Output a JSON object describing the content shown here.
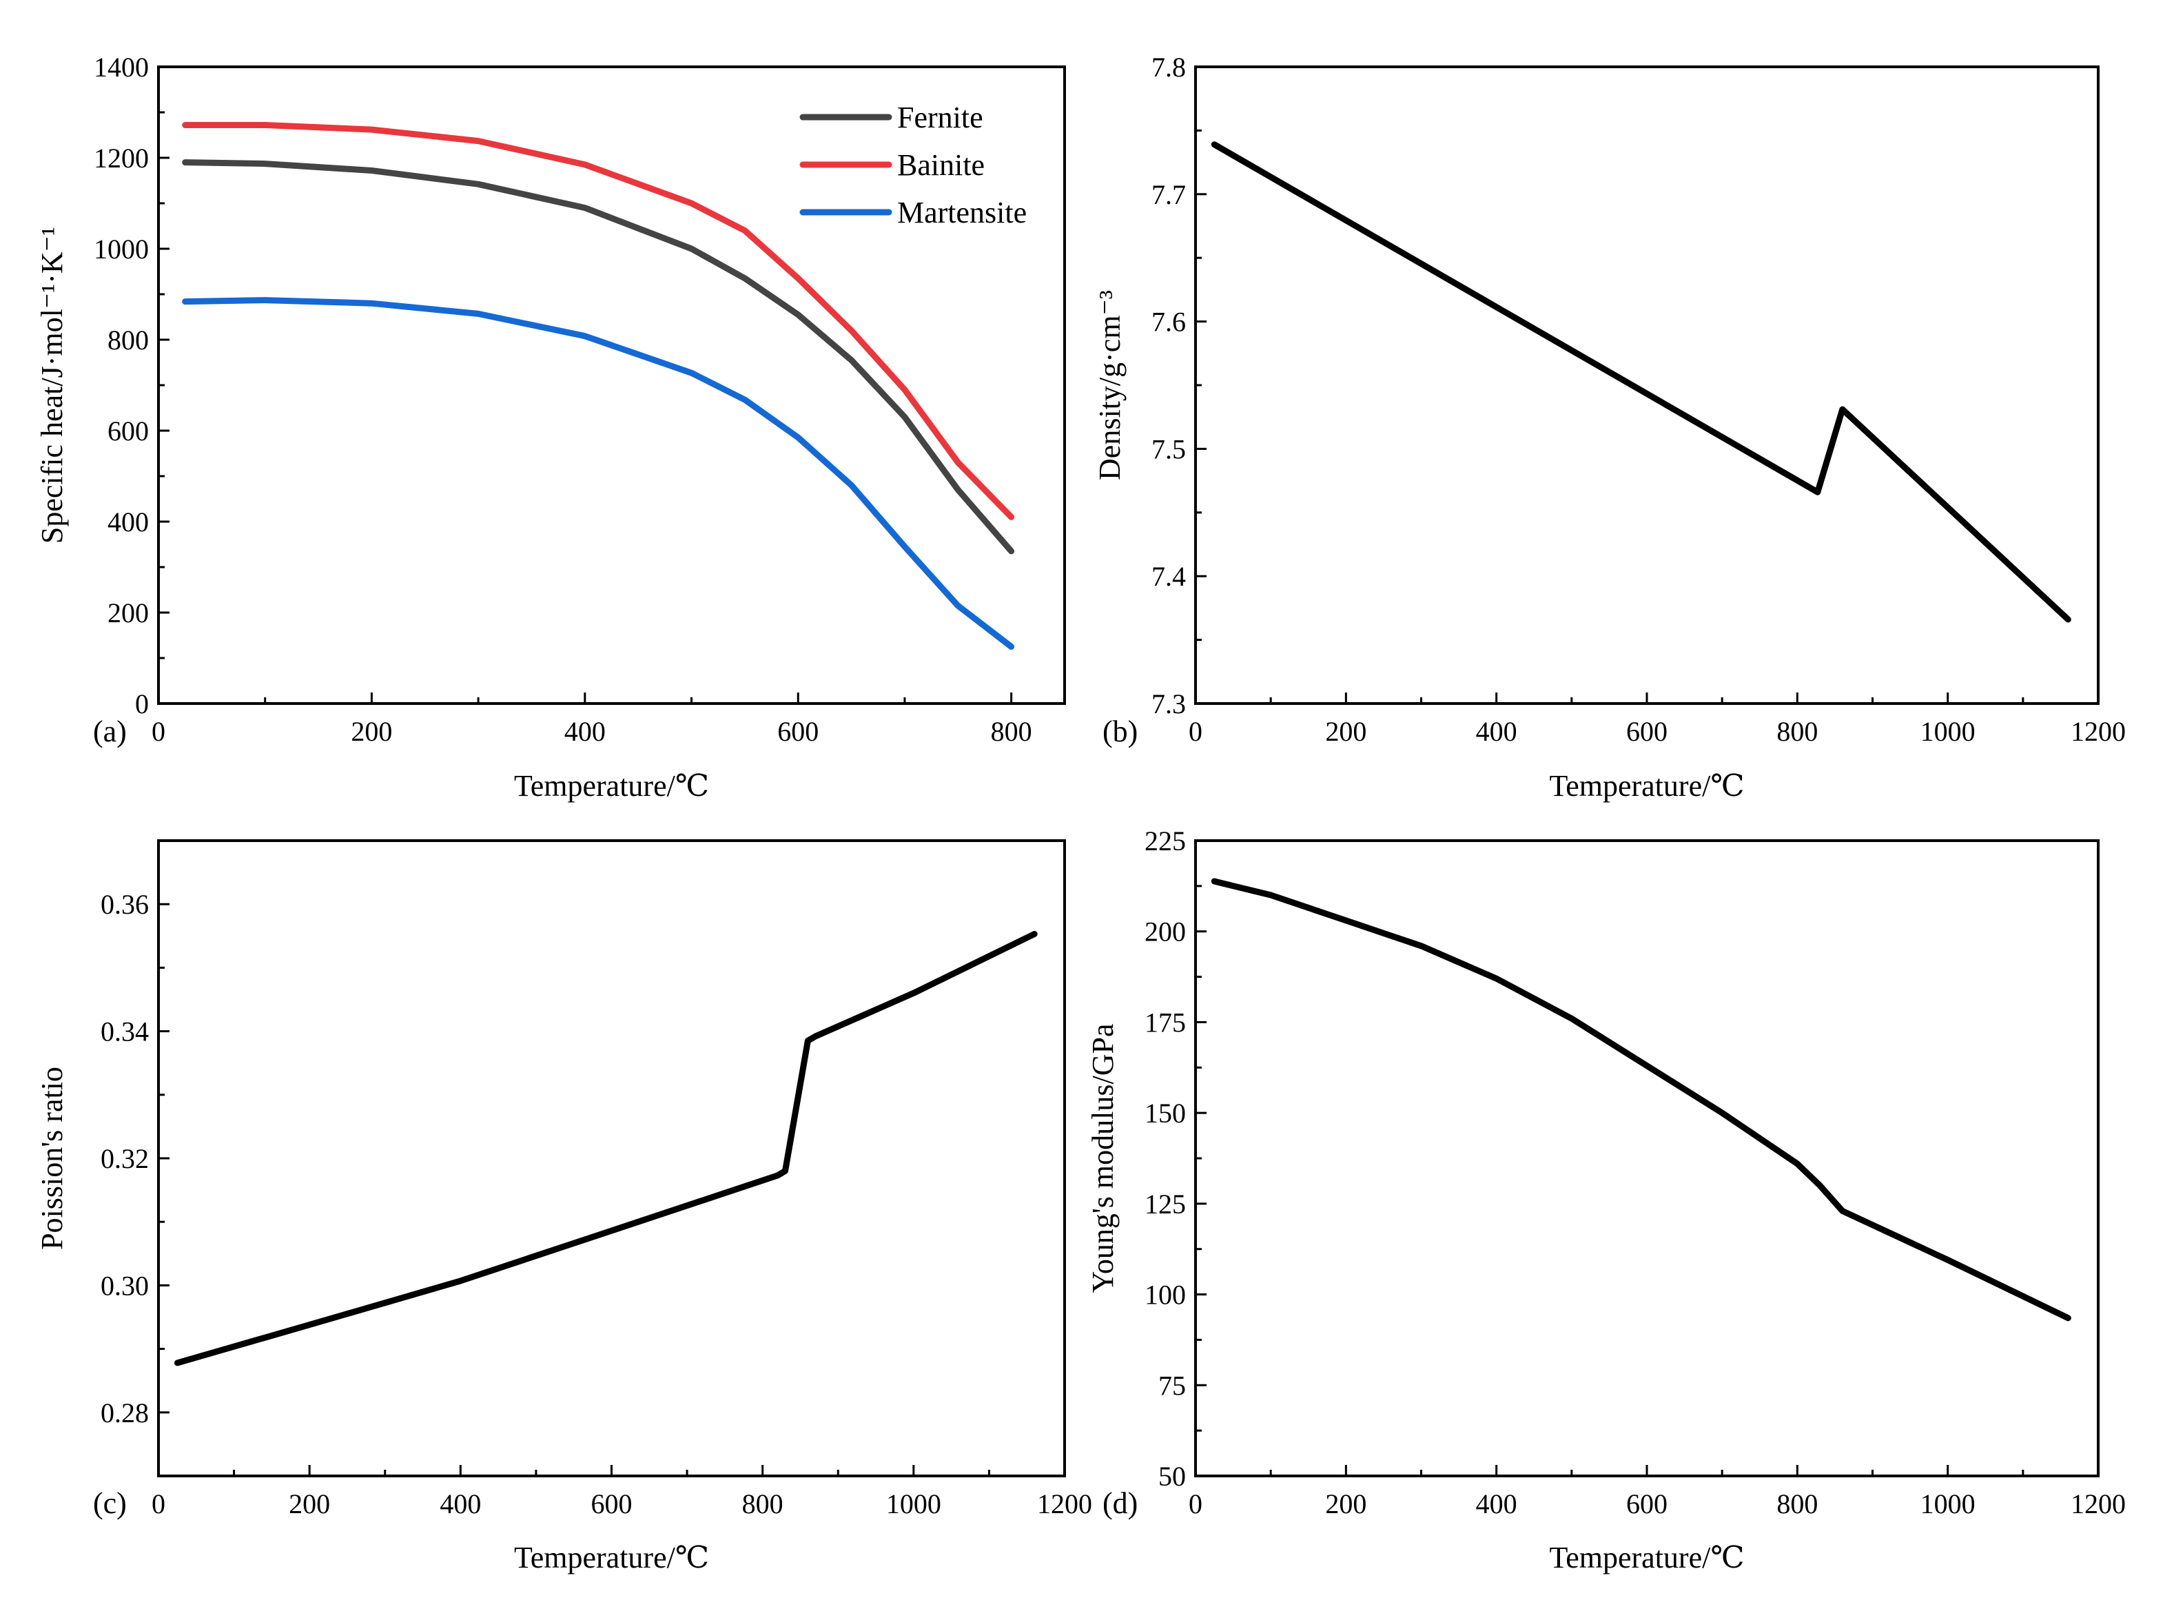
{
  "chart_data": [
    {
      "id": "a",
      "type": "line",
      "panel_label": "(a)",
      "xlabel": "Temperature/℃",
      "ylabel": "Specific heat/J·mol⁻¹·K⁻¹",
      "xlim": [
        0,
        850
      ],
      "ylim": [
        0,
        1400
      ],
      "xticks": [
        0,
        200,
        400,
        600,
        800
      ],
      "yticks": [
        0,
        200,
        400,
        600,
        800,
        1000,
        1200,
        1400
      ],
      "legend": "top-right",
      "series": [
        {
          "name": "Fernite",
          "color": "#444444",
          "x": [
            25,
            100,
            200,
            300,
            400,
            500,
            550,
            600,
            650,
            700,
            750,
            800
          ],
          "y": [
            1190,
            1187,
            1172,
            1142,
            1090,
            1000,
            935,
            855,
            755,
            630,
            470,
            335
          ]
        },
        {
          "name": "Bainite",
          "color": "#e8383d",
          "x": [
            25,
            100,
            200,
            300,
            400,
            500,
            550,
            600,
            650,
            700,
            750,
            800
          ],
          "y": [
            1272,
            1272,
            1262,
            1237,
            1185,
            1100,
            1040,
            935,
            820,
            690,
            530,
            410
          ]
        },
        {
          "name": "Martensite",
          "color": "#1569d3",
          "x": [
            25,
            100,
            200,
            300,
            400,
            500,
            550,
            600,
            650,
            700,
            750,
            800
          ],
          "y": [
            884,
            887,
            880,
            857,
            808,
            727,
            668,
            585,
            480,
            345,
            215,
            125
          ]
        }
      ]
    },
    {
      "id": "b",
      "type": "line",
      "panel_label": "(b)",
      "xlabel": "Temperature/℃",
      "ylabel": "Density/g·cm⁻³",
      "xlim": [
        0,
        1200
      ],
      "ylim": [
        7.3,
        7.8
      ],
      "xticks": [
        0,
        200,
        400,
        600,
        800,
        1000,
        1200
      ],
      "yticks": [
        7.3,
        7.4,
        7.5,
        7.6,
        7.7,
        7.8
      ],
      "series": [
        {
          "name": "Density",
          "color": "#000000",
          "x": [
            25,
            827,
            860,
            1160
          ],
          "y": [
            7.739,
            7.466,
            7.531,
            7.366
          ]
        }
      ]
    },
    {
      "id": "c",
      "type": "line",
      "panel_label": "(c)",
      "xlabel": "Temperature/℃",
      "ylabel": "Poission's ratio",
      "xlim": [
        0,
        1200
      ],
      "ylim": [
        0.27,
        0.37
      ],
      "xticks": [
        0,
        200,
        400,
        600,
        800,
        1000,
        1200
      ],
      "yticks": [
        0.28,
        0.3,
        0.32,
        0.34,
        0.36
      ],
      "series": [
        {
          "name": "Poission's ratio",
          "color": "#000000",
          "x": [
            25,
            200,
            400,
            600,
            820,
            830,
            860,
            870,
            1000,
            1160
          ],
          "y": [
            0.2878,
            0.2938,
            0.3007,
            0.3086,
            0.3173,
            0.318,
            0.3385,
            0.3392,
            0.346,
            0.3553
          ]
        }
      ]
    },
    {
      "id": "d",
      "type": "line",
      "panel_label": "(d)",
      "xlabel": "Temperature/℃",
      "ylabel": "Young's modulus/GPa",
      "xlim": [
        0,
        1200
      ],
      "ylim": [
        50,
        225
      ],
      "xticks": [
        0,
        200,
        400,
        600,
        800,
        1000,
        1200
      ],
      "yticks": [
        50,
        75,
        100,
        125,
        150,
        175,
        200,
        225
      ],
      "series": [
        {
          "name": "Young's modulus",
          "color": "#000000",
          "x": [
            25,
            100,
            200,
            300,
            400,
            500,
            600,
            700,
            800,
            830,
            860,
            1000,
            1160
          ],
          "y": [
            213.8,
            210,
            203,
            196,
            187,
            176,
            163,
            150,
            136,
            130,
            123,
            109.5,
            93.5
          ]
        }
      ]
    }
  ]
}
